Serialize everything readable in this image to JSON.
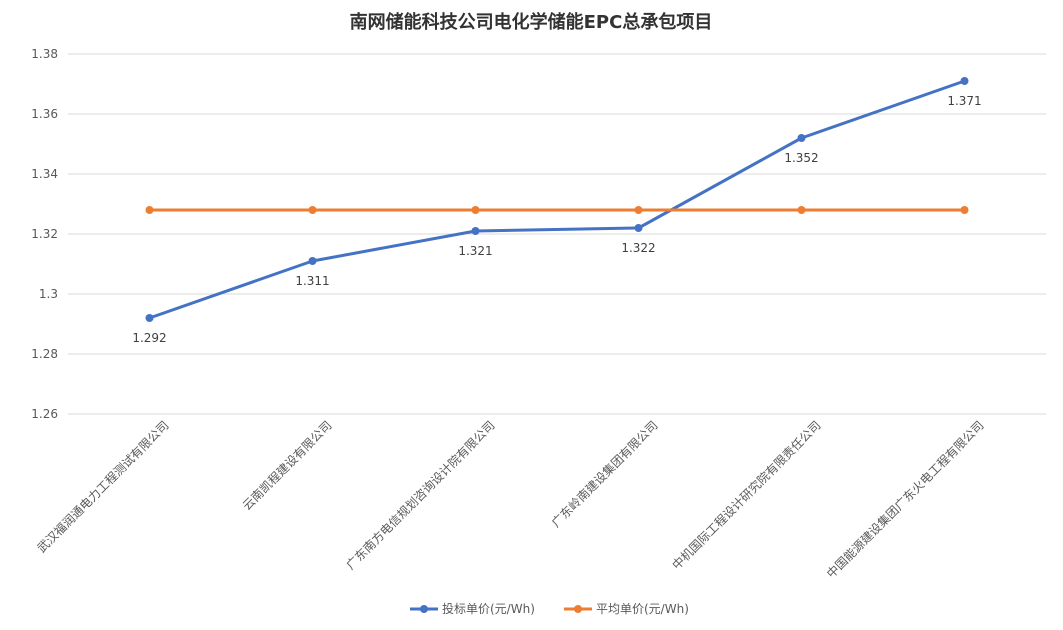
{
  "chart_data": {
    "type": "line",
    "title": "南网储能科技公司电化学储能EPC总承包项目",
    "xlabel": "",
    "ylabel": "",
    "categories": [
      "武汉福润通电力工程测试有限公司",
      "云南凯程建设有限公司",
      "广东南方电信规划咨询设计院有限公司",
      "广东岭南建设集团有限公司",
      "中机国际工程设计研究院有限责任公司",
      "中国能源建设集团广东火电工程有限公司"
    ],
    "series": [
      {
        "name": "投标单价(元/Wh)",
        "values": [
          1.292,
          1.311,
          1.321,
          1.322,
          1.352,
          1.371
        ],
        "color": "#4472C4",
        "labels": [
          "1.292",
          "1.311",
          "1.321",
          "1.322",
          "1.352",
          "1.371"
        ]
      },
      {
        "name": "平均单价(元/Wh)",
        "values": [
          1.328,
          1.328,
          1.328,
          1.328,
          1.328,
          1.328
        ],
        "color": "#ED7D31"
      }
    ],
    "ylim": [
      1.26,
      1.38
    ],
    "yticks": [
      1.26,
      1.28,
      1.3,
      1.32,
      1.34,
      1.36,
      1.38
    ],
    "ytick_labels": [
      "1.26",
      "1.28",
      "1.3",
      "1.32",
      "1.34",
      "1.36",
      "1.38"
    ],
    "grid": true,
    "legend_position": "bottom"
  }
}
